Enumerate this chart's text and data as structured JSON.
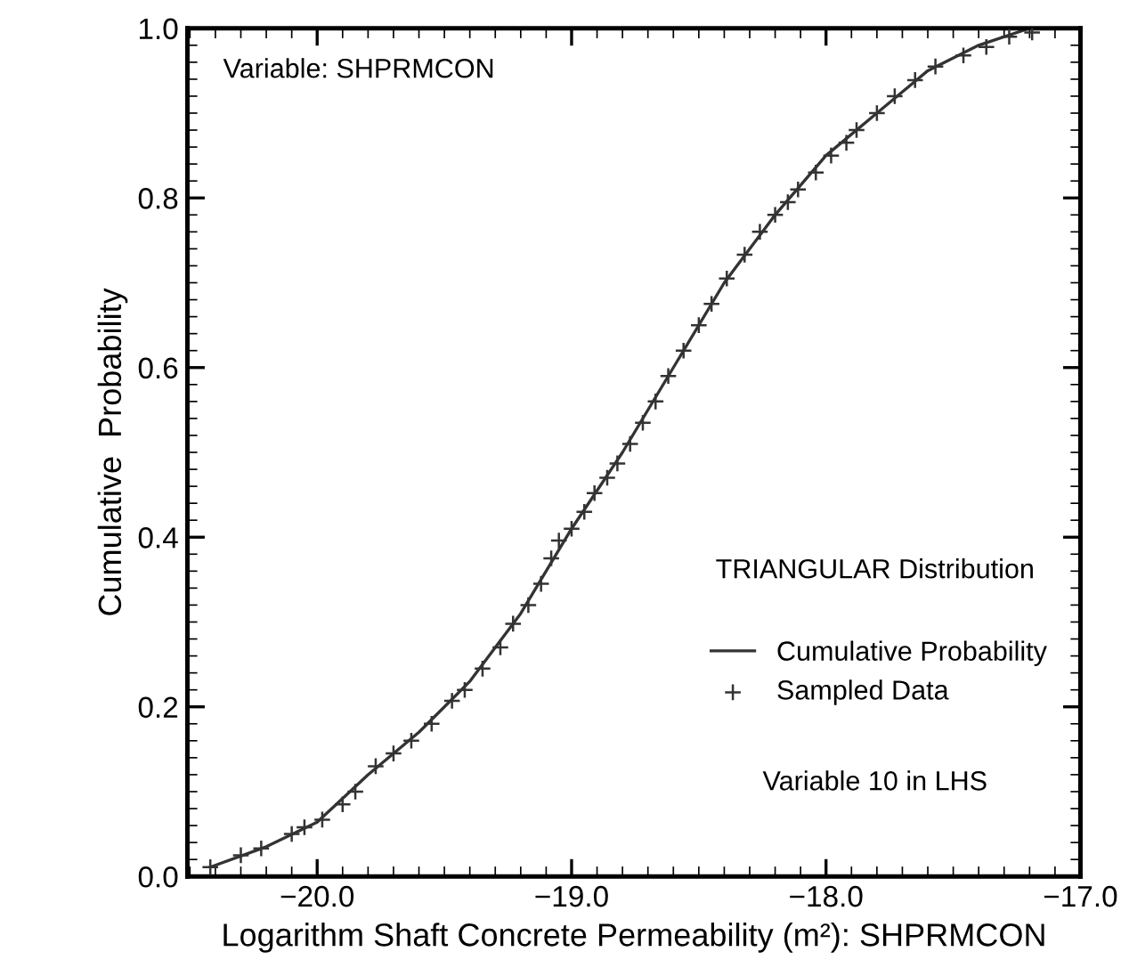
{
  "chart_data": {
    "type": "line",
    "xlabel": "Logarithm Shaft Concrete Permeability (m²): SHPRMCON",
    "ylabel": "Cumulative  Probability",
    "annotations": [
      "Variable: SHPRMCON",
      "TRIANGULAR Distribution",
      "Variable 10 in LHS"
    ],
    "xlim": [
      -20.51,
      -17.0
    ],
    "xticks": [
      {
        "value": -20.0,
        "label": "−20.0"
      },
      {
        "value": -19.0,
        "label": "−19.0"
      },
      {
        "value": -18.0,
        "label": "−18.0"
      },
      {
        "value": -17.0,
        "label": "−17.0"
      }
    ],
    "ylim": [
      0,
      1
    ],
    "yticks": [
      {
        "value": 0,
        "label": "0.0"
      },
      0.2,
      0.4,
      0.6,
      0.8,
      {
        "value": 1,
        "label": "1.0"
      }
    ],
    "grid": false,
    "legend": "right",
    "series": [
      {
        "name": "Cumulative Probability",
        "color": "#333333",
        "marker": "none",
        "line_style": "solid",
        "x": [
          -20.42,
          -20.2,
          -20.0,
          -19.8,
          -19.6,
          -19.4,
          -19.2,
          -19.0,
          -18.8,
          -18.6,
          -18.4,
          -18.2,
          -18.0,
          -17.8,
          -17.6,
          -17.4,
          -17.2
        ],
        "values": [
          0.011,
          0.035,
          0.064,
          0.12,
          0.17,
          0.23,
          0.31,
          0.41,
          0.5,
          0.6,
          0.7,
          0.78,
          0.85,
          0.9,
          0.95,
          0.98,
          1.0
        ]
      },
      {
        "name": "Sampled Data",
        "type": "scatter",
        "color": "#333333",
        "marker": "cross",
        "x": [
          -20.42,
          -20.3,
          -20.22,
          -20.1,
          -20.05,
          -19.98,
          -19.9,
          -19.85,
          -19.77,
          -19.7,
          -19.63,
          -19.55,
          -19.47,
          -19.42,
          -19.35,
          -19.28,
          -19.23,
          -19.17,
          -19.12,
          -19.08,
          -19.05,
          -19.0,
          -18.95,
          -18.91,
          -18.86,
          -18.82,
          -18.77,
          -18.72,
          -18.67,
          -18.62,
          -18.56,
          -18.5,
          -18.45,
          -18.39,
          -18.32,
          -18.26,
          -18.2,
          -18.15,
          -18.11,
          -18.04,
          -17.98,
          -17.92,
          -17.88,
          -17.8,
          -17.73,
          -17.65,
          -17.57,
          -17.46,
          -17.37,
          -17.28,
          -17.19
        ],
        "values": [
          0.011,
          0.025,
          0.033,
          0.05,
          0.058,
          0.067,
          0.085,
          0.1,
          0.13,
          0.145,
          0.16,
          0.18,
          0.207,
          0.22,
          0.245,
          0.27,
          0.298,
          0.32,
          0.345,
          0.375,
          0.396,
          0.41,
          0.43,
          0.452,
          0.47,
          0.487,
          0.51,
          0.535,
          0.56,
          0.59,
          0.62,
          0.65,
          0.675,
          0.705,
          0.733,
          0.76,
          0.78,
          0.795,
          0.81,
          0.83,
          0.85,
          0.865,
          0.88,
          0.9,
          0.92,
          0.939,
          0.955,
          0.968,
          0.978,
          0.99,
          0.995
        ]
      }
    ]
  }
}
